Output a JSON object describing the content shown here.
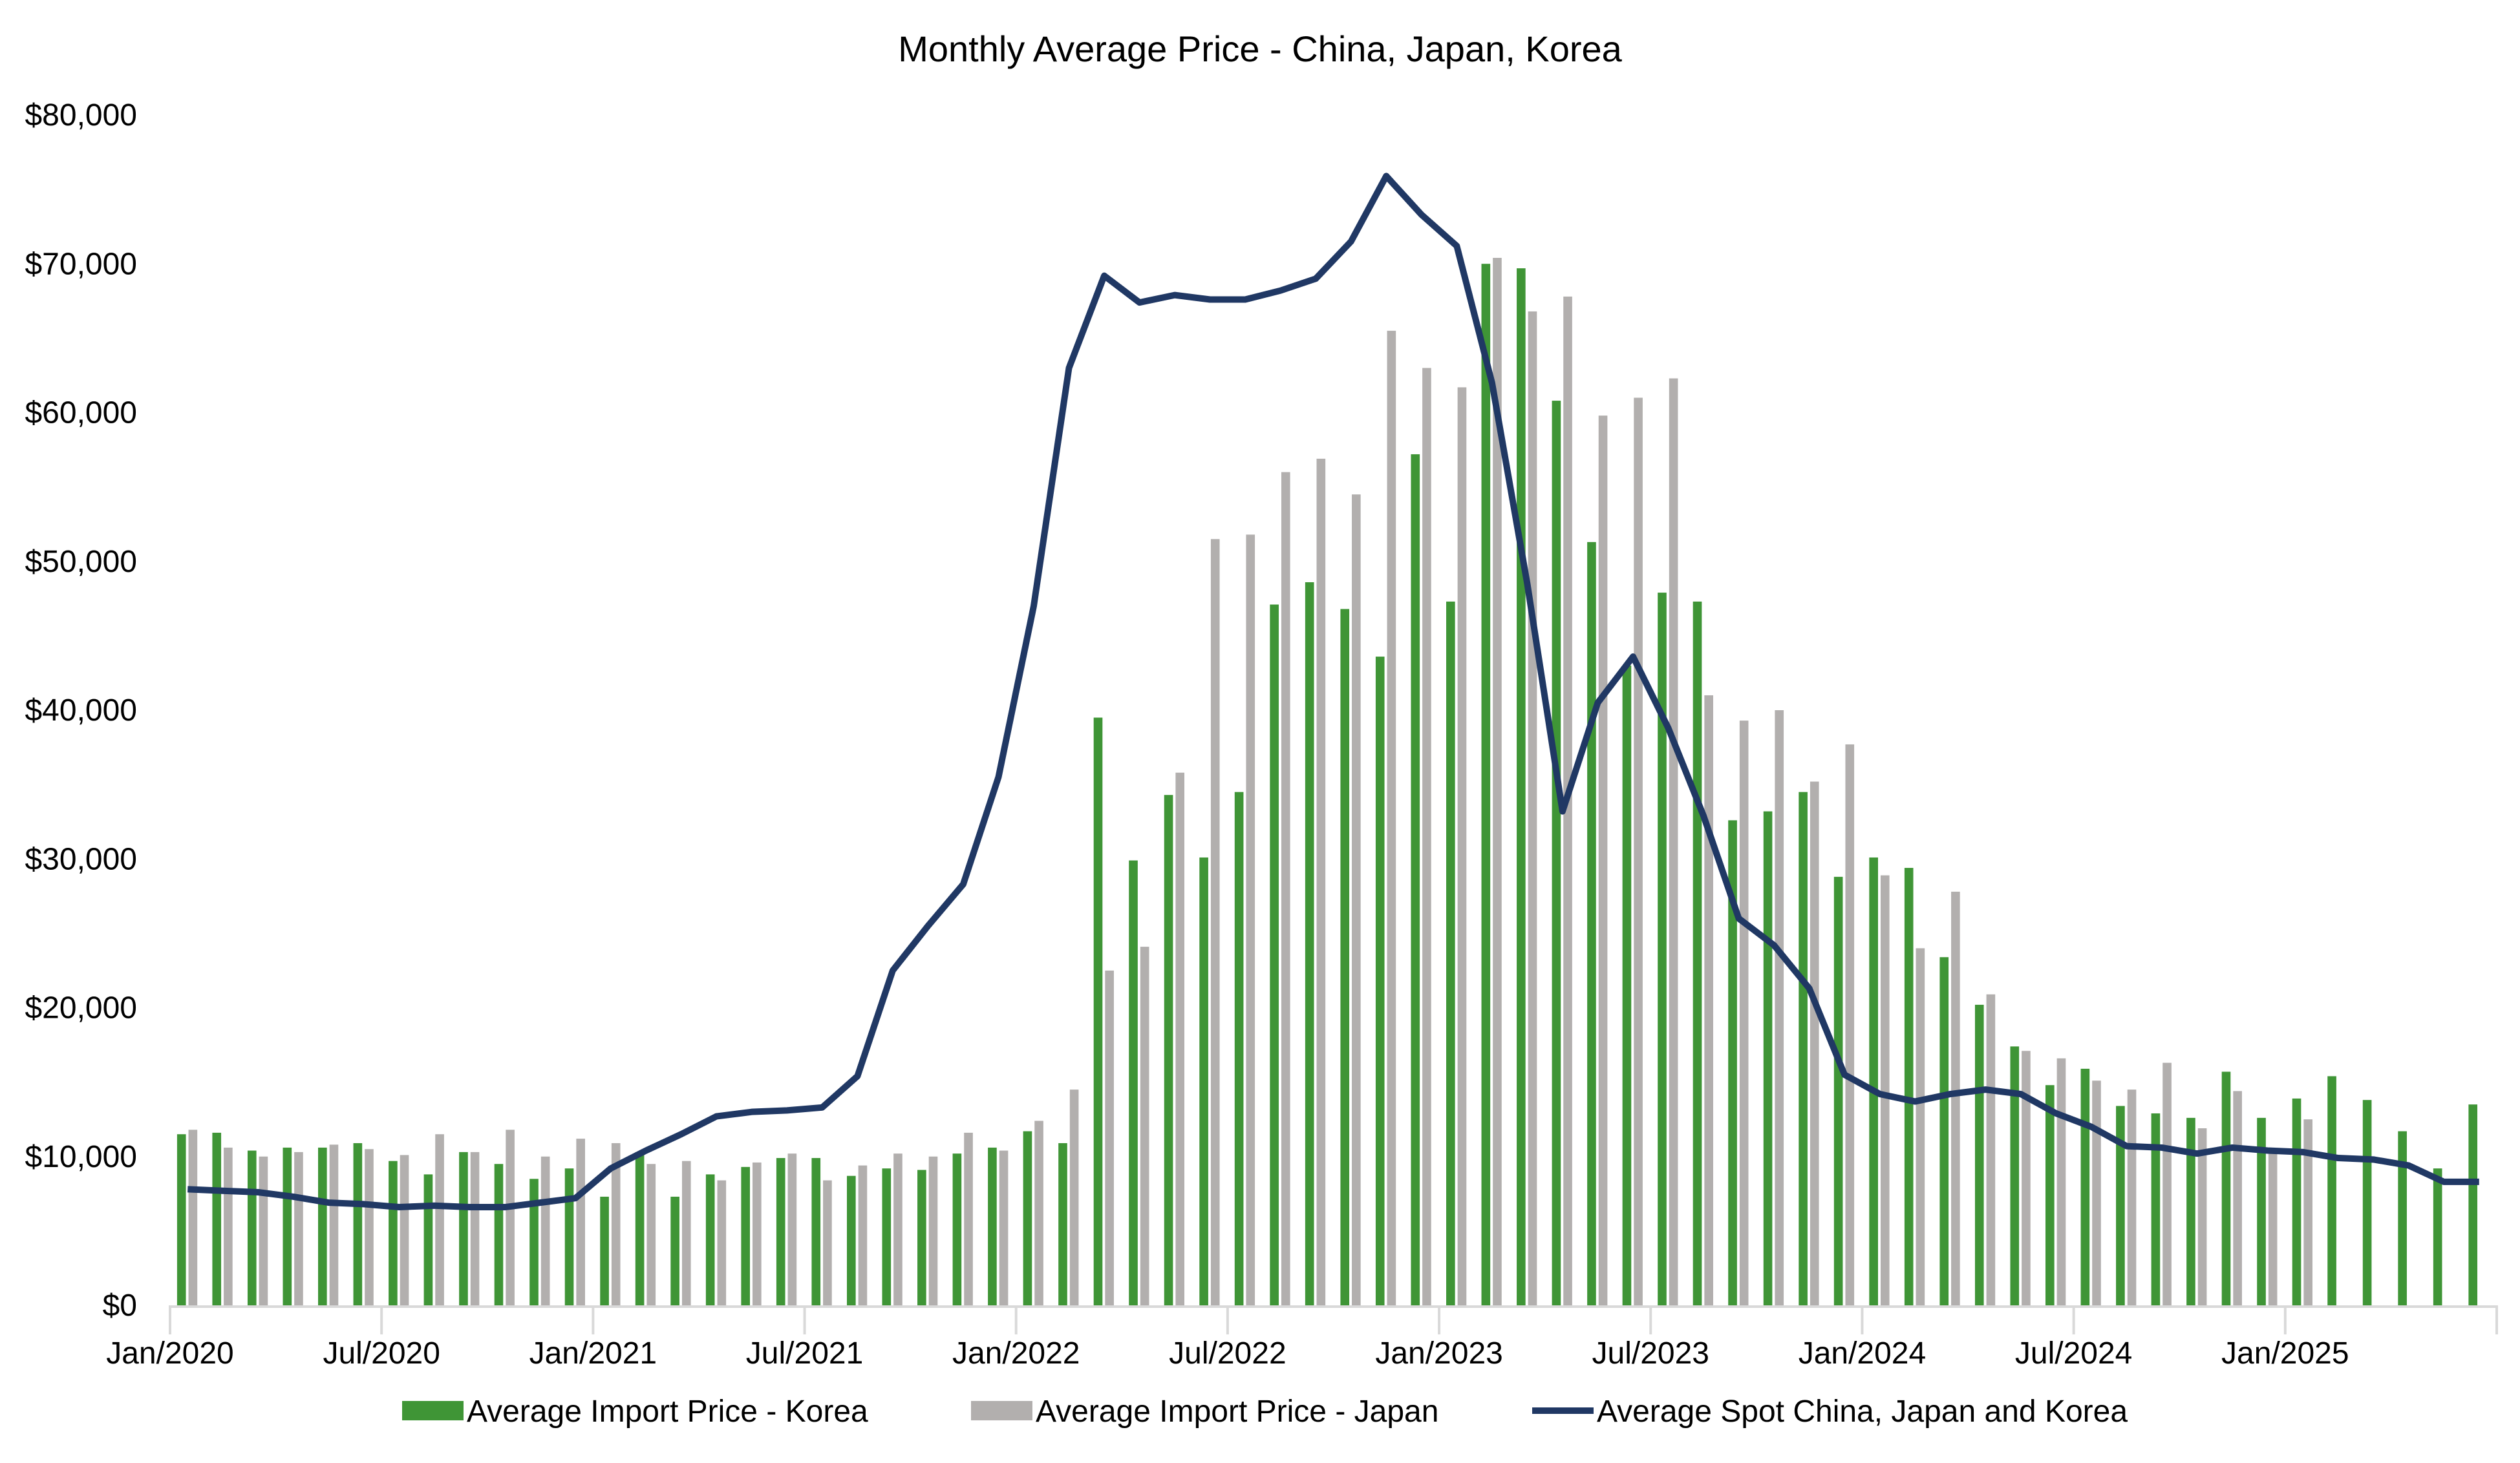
{
  "chart_data": {
    "type": "bar",
    "title": "Monthly Average Price - China, Japan, Korea",
    "xlabel": "",
    "ylabel": "",
    "ylim": [
      0,
      80000
    ],
    "yticks": [
      0,
      10000,
      20000,
      30000,
      40000,
      50000,
      60000,
      70000,
      80000
    ],
    "ytick_labels": [
      "$0",
      "$10,000",
      "$20,000",
      "$30,000",
      "$40,000",
      "$50,000",
      "$60,000",
      "$70,000",
      "$80,000"
    ],
    "xtick_labels": [
      {
        "index": 0,
        "label": "Jan/2020"
      },
      {
        "index": 6,
        "label": "Jul/2020"
      },
      {
        "index": 12,
        "label": "Jan/2021"
      },
      {
        "index": 18,
        "label": "Jul/2021"
      },
      {
        "index": 24,
        "label": "Jan/2022"
      },
      {
        "index": 30,
        "label": "Jul/2022"
      },
      {
        "index": 36,
        "label": "Jan/2023"
      },
      {
        "index": 42,
        "label": "Jul/2023"
      },
      {
        "index": 48,
        "label": "Jan/2024"
      },
      {
        "index": 54,
        "label": "Jul/2024"
      },
      {
        "index": 60,
        "label": "Jan/2025"
      }
    ],
    "categories": [
      "Jan/2020",
      "Feb/2020",
      "Mar/2020",
      "Apr/2020",
      "May/2020",
      "Jun/2020",
      "Jul/2020",
      "Aug/2020",
      "Sep/2020",
      "Oct/2020",
      "Nov/2020",
      "Dec/2020",
      "Jan/2021",
      "Feb/2021",
      "Mar/2021",
      "Apr/2021",
      "May/2021",
      "Jun/2021",
      "Jul/2021",
      "Aug/2021",
      "Sep/2021",
      "Oct/2021",
      "Nov/2021",
      "Dec/2021",
      "Jan/2022",
      "Feb/2022",
      "Mar/2022",
      "Apr/2022",
      "May/2022",
      "Jun/2022",
      "Jul/2022",
      "Aug/2022",
      "Sep/2022",
      "Oct/2022",
      "Nov/2022",
      "Dec/2022",
      "Jan/2023",
      "Feb/2023",
      "Mar/2023",
      "Apr/2023",
      "May/2023",
      "Jun/2023",
      "Jul/2023",
      "Aug/2023",
      "Sep/2023",
      "Oct/2023",
      "Nov/2023",
      "Dec/2023",
      "Jan/2024",
      "Feb/2024",
      "Mar/2024",
      "Apr/2024",
      "May/2024",
      "Jun/2024",
      "Jul/2024",
      "Aug/2024",
      "Sep/2024",
      "Oct/2024",
      "Nov/2024",
      "Dec/2024",
      "Jan/2025",
      "Feb/2025",
      "Mar/2025",
      "Apr/2025",
      "May/2025",
      "Jun/2025"
    ],
    "series": [
      {
        "name": "Average Import Price - Korea",
        "type": "bar",
        "color": "#3f9536",
        "values": [
          11500,
          11600,
          10400,
          10600,
          10600,
          10900,
          9700,
          8800,
          10300,
          9500,
          8500,
          9200,
          7300,
          10300,
          7300,
          8800,
          9300,
          9900,
          9900,
          8700,
          9200,
          9100,
          10200,
          10600,
          11700,
          10900,
          39500,
          29900,
          34300,
          30100,
          34500,
          47100,
          48600,
          46800,
          43600,
          57200,
          47300,
          70000,
          69700,
          60800,
          51300,
          43000,
          47900,
          47300,
          32600,
          33200,
          34500,
          28800,
          30100,
          29400,
          23400,
          20200,
          17400,
          14800,
          15900,
          13400,
          12900,
          12600,
          15700,
          12600,
          13900,
          15400,
          13800,
          11700,
          9200,
          13500
        ]
      },
      {
        "name": "Average Import Price - Japan",
        "type": "bar",
        "color": "#b2afae",
        "values": [
          11800,
          10600,
          10000,
          10300,
          10800,
          10500,
          10100,
          11500,
          10300,
          11800,
          10000,
          11200,
          10900,
          9500,
          9700,
          8400,
          9600,
          10200,
          8400,
          9400,
          10200,
          10000,
          11600,
          10400,
          12400,
          14500,
          22500,
          24100,
          35800,
          51500,
          51800,
          56000,
          56900,
          54500,
          65500,
          63000,
          61700,
          70400,
          66800,
          67800,
          59800,
          61000,
          62300,
          41000,
          39300,
          40000,
          35200,
          37700,
          28900,
          24000,
          27800,
          20900,
          17100,
          16600,
          15100,
          14500,
          16300,
          11900,
          14400,
          10400,
          12500,
          null,
          null,
          null,
          null,
          null
        ]
      },
      {
        "name": "Average Spot China, Japan and Korea",
        "type": "line",
        "color": "#203864",
        "values": [
          7800,
          7700,
          7600,
          7300,
          6900,
          6800,
          6600,
          6700,
          6600,
          6600,
          6900,
          7200,
          9200,
          10400,
          11500,
          12700,
          13000,
          13100,
          13300,
          15400,
          22500,
          25500,
          28300,
          35500,
          47000,
          63000,
          69200,
          67400,
          67900,
          67600,
          67600,
          68200,
          69000,
          71500,
          75900,
          73300,
          71200,
          62000,
          48500,
          33200,
          40500,
          43600,
          38800,
          32900,
          26000,
          24200,
          21300,
          15500,
          14200,
          13700,
          14200,
          14500,
          14200,
          12900,
          12000,
          10700,
          10600,
          10200,
          10600,
          10400,
          10300,
          9900,
          9800,
          9400,
          8300,
          8300
        ]
      }
    ],
    "grid": false,
    "legend": "bottom"
  }
}
